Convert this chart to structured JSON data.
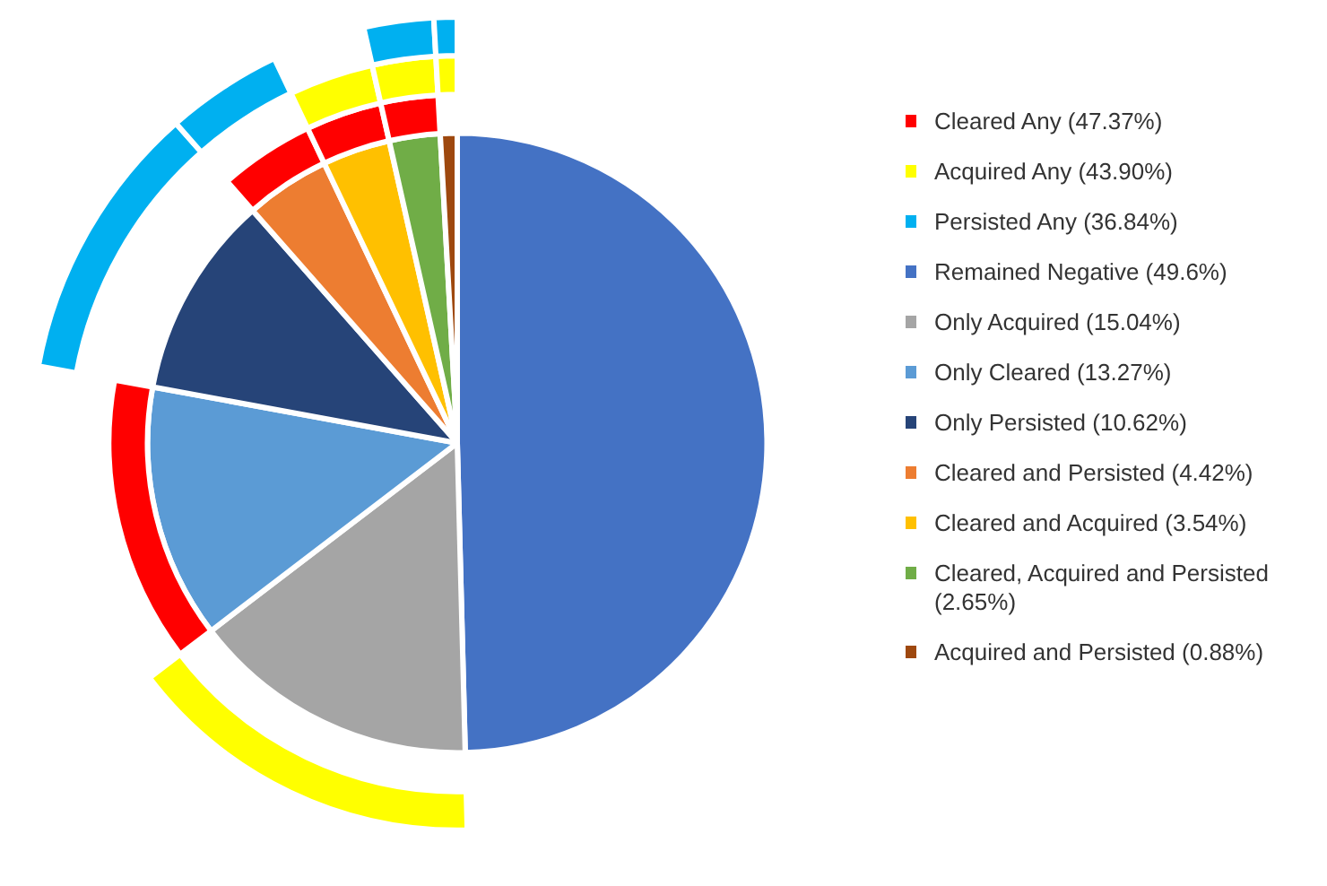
{
  "chart_data": {
    "type": "pie",
    "legend": "right",
    "categories": [
      "Remained Negative (49.6%)",
      "Only Acquired (15.04%)",
      "Only Cleared (13.27%)",
      "Only Persisted (10.62%)",
      "Cleared and Persisted (4.42%)",
      "Cleared and Acquired (3.54%)",
      "Cleared, Acquired and Persisted (2.65%)",
      "Acquired and Persisted (0.88%)"
    ],
    "values": [
      49.6,
      15.04,
      13.27,
      10.62,
      4.42,
      3.54,
      2.65,
      0.88
    ],
    "colors": [
      "#4472c4",
      "#a5a5a5",
      "#5b9bd5",
      "#264478",
      "#ed7d31",
      "#ffc000",
      "#70ad47",
      "#9e480e"
    ],
    "series": [
      {
        "name": "Cleared Any (47.37%)",
        "color": "#ff0000",
        "colors": [
          null,
          null,
          "#ff0000",
          null,
          "#ff0000",
          "#ff0000",
          "#ff0000",
          null
        ],
        "values": [
          null,
          null,
          13.27,
          null,
          4.42,
          3.54,
          2.65,
          null
        ]
      },
      {
        "name": "Acquired Any (43.90%)",
        "color": "#ffff00",
        "colors": [
          null,
          "#ffff00",
          null,
          null,
          null,
          "#ffff00",
          "#ffff00",
          "#ffff00"
        ],
        "values": [
          null,
          15.04,
          null,
          null,
          null,
          3.54,
          2.65,
          0.88
        ]
      },
      {
        "name": "Persisted Any (36.84%)",
        "color": "#00b0f0",
        "colors": [
          null,
          null,
          null,
          "#00b0f0",
          "#00b0f0",
          null,
          "#00b0f0",
          "#00b0f0"
        ],
        "values": [
          null,
          null,
          null,
          10.62,
          4.42,
          null,
          2.65,
          0.88
        ]
      }
    ]
  }
}
